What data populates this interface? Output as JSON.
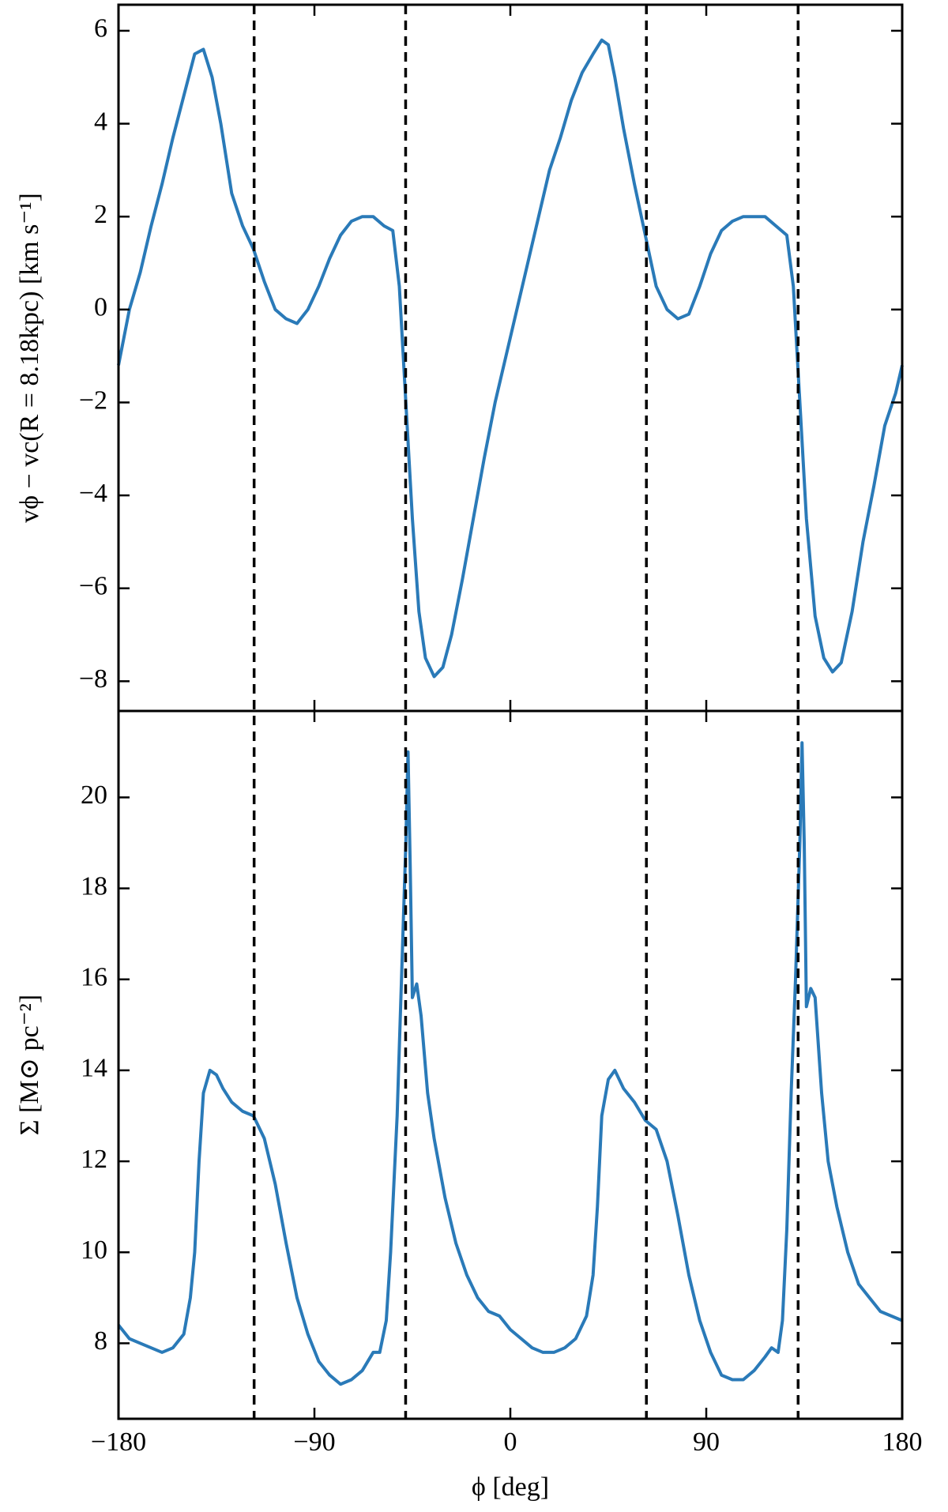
{
  "chart_data": [
    {
      "type": "line",
      "ylabel": "vϕ − vc(R = 8.18kpc) [km s⁻¹]",
      "color": "#2a7ab8",
      "xlim": [
        -180,
        180
      ],
      "xticks": [
        -180,
        -90,
        0,
        90,
        180
      ],
      "ylim": [
        -8.64,
        6.56
      ],
      "yticks": [
        {
          "value": -8,
          "label": "−8"
        },
        {
          "value": -6,
          "label": "−6"
        },
        {
          "value": -4,
          "label": "−4"
        },
        {
          "value": -2,
          "label": "−2"
        },
        0,
        2,
        4,
        6
      ],
      "vlines": [
        -117.7,
        -48.1,
        62.5,
        132.2
      ],
      "x": [
        -180,
        -175,
        -170,
        -165,
        -160,
        -155,
        -150,
        -145,
        -141,
        -137,
        -133,
        -128,
        -123,
        -118,
        -113,
        -108,
        -103,
        -98,
        -93,
        -88,
        -83,
        -78,
        -73,
        -68,
        -63,
        -58,
        -54,
        -51,
        -48,
        -45,
        -42,
        -39,
        -35,
        -31,
        -27,
        -22,
        -17,
        -12,
        -7,
        -2,
        3,
        8,
        13,
        18,
        23,
        28,
        33,
        38,
        42,
        45,
        48,
        52,
        57,
        62,
        67,
        72,
        77,
        82,
        87,
        92,
        97,
        102,
        107,
        112,
        117,
        122,
        127,
        130,
        133,
        136,
        140,
        144,
        148,
        152,
        157,
        162,
        167,
        172,
        177,
        180
      ],
      "values": [
        -1.2,
        0,
        0.8,
        1.8,
        2.7,
        3.7,
        4.6,
        5.5,
        5.6,
        5.0,
        4.0,
        2.5,
        1.8,
        1.3,
        0.6,
        0.0,
        -0.2,
        -0.3,
        0.0,
        0.5,
        1.1,
        1.6,
        1.9,
        2.0,
        2.0,
        1.8,
        1.7,
        0.5,
        -2.0,
        -4.5,
        -6.5,
        -7.5,
        -7.9,
        -7.7,
        -7.0,
        -5.8,
        -4.5,
        -3.2,
        -2.0,
        -1.0,
        0.0,
        1.0,
        2.0,
        3.0,
        3.7,
        4.5,
        5.1,
        5.5,
        5.8,
        5.7,
        5.0,
        3.9,
        2.7,
        1.6,
        0.5,
        0.0,
        -0.2,
        -0.1,
        0.5,
        1.2,
        1.7,
        1.9,
        2.0,
        2.0,
        2.0,
        1.8,
        1.6,
        0.5,
        -2.0,
        -4.5,
        -6.6,
        -7.5,
        -7.8,
        -7.6,
        -6.5,
        -5.0,
        -3.8,
        -2.5,
        -1.8,
        -1.2
      ]
    },
    {
      "type": "line",
      "ylabel": "Σ [M⊙ pc⁻²]",
      "xlabel": "ϕ [deg]",
      "color": "#2a7ab8",
      "xlim": [
        -180,
        180
      ],
      "xticks": [
        {
          "value": -180,
          "label": "−180"
        },
        {
          "value": -90,
          "label": "−90"
        },
        0,
        90,
        180
      ],
      "ylim": [
        6.34,
        21.9
      ],
      "yticks": [
        8,
        10,
        12,
        14,
        16,
        18,
        20
      ],
      "x": [
        -180,
        -175,
        -170,
        -165,
        -160,
        -155,
        -150,
        -147,
        -145,
        -143,
        -141,
        -138,
        -135,
        -132,
        -128,
        -123,
        -118,
        -113,
        -108,
        -103,
        -98,
        -93,
        -88,
        -83,
        -78,
        -73,
        -68,
        -63,
        -60,
        -57,
        -55,
        -52,
        -50,
        -48,
        -47,
        -46,
        -45,
        -43,
        -41,
        -38,
        -35,
        -30,
        -25,
        -20,
        -15,
        -10,
        -5,
        0,
        5,
        10,
        15,
        20,
        25,
        30,
        35,
        38,
        40,
        42,
        45,
        48,
        52,
        57,
        62,
        67,
        72,
        77,
        82,
        87,
        92,
        97,
        102,
        107,
        112,
        117,
        120,
        123,
        125,
        127,
        129,
        131,
        133,
        134,
        135,
        136,
        138,
        140,
        143,
        146,
        150,
        155,
        160,
        165,
        170,
        175,
        180
      ],
      "values": [
        8.4,
        8.1,
        8.0,
        7.9,
        7.8,
        7.9,
        8.2,
        9.0,
        10.0,
        12.0,
        13.5,
        14.0,
        13.9,
        13.6,
        13.3,
        13.1,
        13.0,
        12.5,
        11.5,
        10.2,
        9.0,
        8.2,
        7.6,
        7.3,
        7.1,
        7.2,
        7.4,
        7.8,
        7.8,
        8.5,
        10.0,
        13.0,
        16.0,
        19.0,
        21.0,
        18.5,
        15.6,
        15.9,
        15.2,
        13.5,
        12.5,
        11.2,
        10.2,
        9.5,
        9.0,
        8.7,
        8.6,
        8.3,
        8.1,
        7.9,
        7.8,
        7.8,
        7.9,
        8.1,
        8.6,
        9.5,
        11.0,
        13.0,
        13.8,
        14.0,
        13.6,
        13.3,
        12.9,
        12.7,
        12.0,
        10.8,
        9.5,
        8.5,
        7.8,
        7.3,
        7.2,
        7.2,
        7.4,
        7.7,
        7.9,
        7.8,
        8.5,
        10.5,
        13.5,
        16.0,
        19.0,
        21.2,
        19.0,
        15.4,
        15.8,
        15.6,
        13.5,
        12.0,
        11.0,
        10.0,
        9.3,
        9.0,
        8.7,
        8.6,
        8.5
      ]
    }
  ]
}
